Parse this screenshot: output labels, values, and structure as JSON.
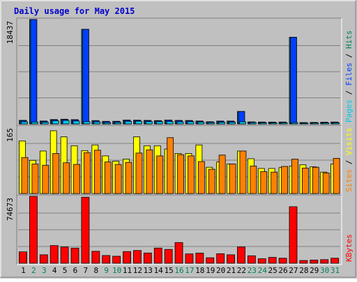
{
  "title": "Daily usage for May 2015",
  "colors": {
    "outer_bg": "#c0c0c0",
    "panel_bg": "#c0c0c0",
    "grid": "#808080",
    "title": "#0000cc",
    "hits": "#00805c",
    "files": "#0040ff",
    "pages": "#00c8f0",
    "visits": "#ffff00",
    "sites": "#ff8000",
    "kbytes": "#ff0000",
    "weekday_label": "#000000",
    "weekend_label": "#00805c"
  },
  "chart_data": [
    {
      "type": "bar",
      "panel": "hits-files-pages",
      "ymax_label": "18437",
      "ylim": [
        0,
        18437
      ],
      "grid": true,
      "right_label_parts": [
        "Pages",
        "Files",
        "Hits"
      ],
      "x": [
        1,
        2,
        3,
        4,
        5,
        6,
        7,
        8,
        9,
        10,
        11,
        12,
        13,
        14,
        15,
        16,
        17,
        18,
        19,
        20,
        21,
        22,
        23,
        24,
        25,
        26,
        27,
        28,
        29,
        30,
        31
      ],
      "series": [
        {
          "name": "Hits",
          "values": [
            640,
            18437,
            520,
            780,
            830,
            760,
            16700,
            590,
            460,
            470,
            690,
            670,
            630,
            590,
            690,
            630,
            610,
            520,
            390,
            510,
            510,
            2200,
            360,
            340,
            330,
            340,
            15300,
            240,
            270,
            310,
            340
          ]
        },
        {
          "name": "Files",
          "values": [
            590,
            18437,
            480,
            730,
            780,
            710,
            16700,
            550,
            430,
            430,
            640,
            620,
            580,
            550,
            640,
            580,
            560,
            480,
            360,
            470,
            470,
            2200,
            330,
            310,
            300,
            310,
            15300,
            220,
            250,
            280,
            310
          ]
        },
        {
          "name": "Pages",
          "values": [
            380,
            330,
            300,
            560,
            610,
            510,
            400,
            350,
            230,
            250,
            450,
            470,
            410,
            400,
            430,
            360,
            390,
            330,
            240,
            290,
            300,
            380,
            230,
            210,
            200,
            210,
            220,
            150,
            170,
            190,
            210
          ]
        }
      ]
    },
    {
      "type": "bar",
      "panel": "visits-sites",
      "ymax_label": "165",
      "ylim": [
        0,
        165
      ],
      "grid": true,
      "right_label_parts": [
        "Sites",
        "Visits"
      ],
      "x": [
        1,
        2,
        3,
        4,
        5,
        6,
        7,
        8,
        9,
        10,
        11,
        12,
        13,
        14,
        15,
        16,
        17,
        18,
        19,
        20,
        21,
        22,
        23,
        24,
        25,
        26,
        27,
        28,
        29,
        30,
        31
      ],
      "series": [
        {
          "name": "Visits",
          "values": [
            130,
            82,
            105,
            155,
            140,
            118,
            106,
            120,
            93,
            80,
            85,
            140,
            118,
            118,
            110,
            99,
            99,
            120,
            65,
            78,
            73,
            105,
            86,
            62,
            62,
            64,
            68,
            71,
            66,
            53,
            73
          ]
        },
        {
          "name": "Sites",
          "values": [
            89,
            73,
            70,
            99,
            76,
            72,
            101,
            107,
            78,
            72,
            77,
            100,
            108,
            93,
            138,
            96,
            93,
            79,
            60,
            95,
            73,
            105,
            68,
            54,
            53,
            67,
            85,
            63,
            65,
            51,
            87
          ]
        }
      ]
    },
    {
      "type": "bar",
      "panel": "kbytes",
      "ymax_label": "74673",
      "ylim": [
        0,
        74673
      ],
      "grid": true,
      "right_label_parts": [
        "KBytes"
      ],
      "x": [
        1,
        2,
        3,
        4,
        5,
        6,
        7,
        8,
        9,
        10,
        11,
        12,
        13,
        14,
        15,
        16,
        17,
        18,
        19,
        20,
        21,
        22,
        23,
        24,
        25,
        26,
        27,
        28,
        29,
        30,
        31
      ],
      "series": [
        {
          "name": "KBytes",
          "values": [
            12700,
            74673,
            9400,
            19700,
            18100,
            16900,
            73700,
            13300,
            8600,
            7800,
            13000,
            14200,
            11400,
            16900,
            15400,
            23100,
            10400,
            11300,
            6100,
            10600,
            9400,
            18100,
            8300,
            5000,
            6500,
            5600,
            63100,
            3000,
            3500,
            4000,
            5600
          ]
        }
      ]
    }
  ]
}
